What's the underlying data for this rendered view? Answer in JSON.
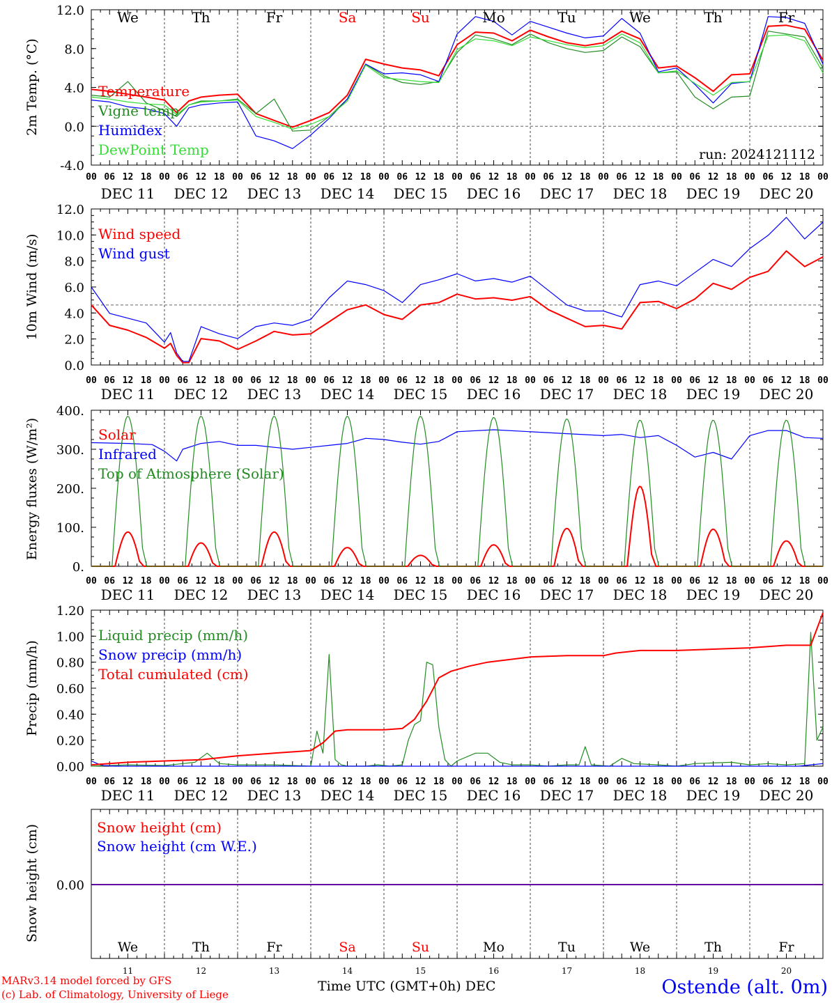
{
  "days": [
    "DEC 11",
    "DEC 12",
    "DEC 13",
    "DEC 14",
    "DEC 15",
    "DEC 16",
    "DEC 17",
    "DEC 18",
    "DEC 19",
    "DEC 20"
  ],
  "weekdays": [
    "We",
    "Th",
    "Fr",
    "Sa",
    "Su",
    "Mo",
    "Tu",
    "We",
    "Th",
    "Fr"
  ],
  "weekday_colors": [
    "#000000",
    "#000000",
    "#000000",
    "#ff0000",
    "#ff0000",
    "#000000",
    "#000000",
    "#000000",
    "#000000",
    "#000000"
  ],
  "day_numbers": [
    "11",
    "12",
    "13",
    "14",
    "15",
    "16",
    "17",
    "18",
    "19",
    "20"
  ],
  "hour_ticks": [
    "00",
    "06",
    "12",
    "18"
  ],
  "hour_end": "00",
  "run_label": "run: 2024121112",
  "footer": {
    "credit_line1": "MARv3.14 model forced by GFS",
    "credit_line2": "(c) Lab. of Climatology, University of Liege",
    "xlabel": "Time UTC (GMT+0h) DEC",
    "station": "Ostende (alt. 0m)"
  },
  "colors": {
    "red": "#ff0000",
    "green": "#228b22",
    "blue": "#0000ff",
    "lightgreen": "#33dd33"
  },
  "chart_data": [
    {
      "type": "line",
      "ylabel": "2m Temp. (°C)",
      "ylim": [
        -4,
        12
      ],
      "yticks": [
        "-4.0",
        "0.0",
        "4.0",
        "8.0",
        "12.0"
      ],
      "x_unit": "hours since DEC 11 00 UTC",
      "x_range": [
        0,
        240
      ],
      "dashed_y": 0,
      "series": [
        {
          "name": "Temperature",
          "color": "red",
          "x": [
            0,
            6,
            12,
            18,
            24,
            28,
            32,
            36,
            42,
            48,
            54,
            60,
            66,
            72,
            78,
            84,
            90,
            96,
            102,
            108,
            114,
            120,
            126,
            132,
            138,
            144,
            150,
            156,
            162,
            168,
            174,
            180,
            186,
            192,
            198,
            204,
            210,
            216,
            222,
            228,
            234,
            240
          ],
          "y": [
            3.8,
            3.6,
            3.3,
            3.0,
            2.7,
            1.4,
            2.6,
            3.0,
            3.2,
            3.3,
            1.3,
            0.6,
            -0.1,
            0.6,
            1.4,
            3.2,
            6.9,
            6.4,
            6.0,
            5.8,
            5.2,
            8.4,
            9.7,
            9.6,
            8.8,
            9.9,
            9.2,
            8.6,
            8.3,
            8.6,
            9.8,
            9.0,
            6.0,
            6.2,
            5.0,
            3.6,
            5.3,
            5.4,
            10.3,
            10.4,
            10.0,
            6.8
          ]
        },
        {
          "name": "Vigne temp",
          "color": "green",
          "x": [
            0,
            6,
            12,
            18,
            24,
            28,
            32,
            36,
            42,
            48,
            54,
            60,
            66,
            72,
            78,
            84,
            90,
            96,
            102,
            108,
            114,
            120,
            126,
            132,
            138,
            144,
            150,
            156,
            162,
            168,
            174,
            180,
            186,
            192,
            198,
            204,
            210,
            216,
            222,
            228,
            234,
            240
          ],
          "y": [
            3.2,
            3.0,
            4.6,
            2.4,
            1.6,
            1.0,
            2.2,
            2.6,
            2.6,
            2.8,
            1.3,
            2.8,
            -0.5,
            -0.4,
            1.0,
            2.8,
            6.4,
            5.2,
            4.5,
            4.3,
            4.6,
            7.6,
            9.4,
            9.0,
            8.4,
            9.5,
            8.6,
            8.0,
            7.6,
            7.8,
            9.2,
            8.2,
            5.5,
            5.6,
            3.0,
            1.8,
            3.0,
            3.1,
            9.8,
            9.5,
            9.2,
            6.0
          ]
        },
        {
          "name": "Humidex",
          "color": "blue",
          "x": [
            0,
            6,
            12,
            18,
            24,
            28,
            32,
            36,
            42,
            48,
            54,
            60,
            66,
            72,
            78,
            84,
            90,
            96,
            102,
            108,
            114,
            120,
            126,
            132,
            138,
            144,
            150,
            156,
            162,
            168,
            174,
            180,
            186,
            192,
            198,
            204,
            210,
            216,
            222,
            228,
            234,
            240
          ],
          "y": [
            2.7,
            2.5,
            2.0,
            1.8,
            1.3,
            0.0,
            1.9,
            2.2,
            2.4,
            2.5,
            -1.0,
            -1.5,
            -2.3,
            -0.9,
            0.8,
            2.8,
            6.4,
            5.4,
            5.5,
            5.3,
            4.6,
            9.5,
            11.3,
            10.8,
            9.4,
            10.8,
            10.2,
            9.6,
            9.1,
            9.3,
            11.1,
            9.6,
            5.6,
            6.0,
            4.3,
            2.4,
            4.4,
            4.6,
            11.3,
            11.2,
            10.6,
            6.4
          ]
        },
        {
          "name": "DewPoint Temp",
          "color": "lightgreen",
          "x": [
            0,
            6,
            12,
            18,
            24,
            28,
            32,
            36,
            42,
            48,
            54,
            60,
            66,
            72,
            78,
            84,
            90,
            96,
            102,
            108,
            114,
            120,
            126,
            132,
            138,
            144,
            150,
            156,
            162,
            168,
            174,
            180,
            186,
            192,
            198,
            204,
            210,
            216,
            222,
            228,
            234,
            240
          ],
          "y": [
            3.0,
            2.8,
            2.5,
            2.3,
            2.2,
            1.2,
            2.2,
            2.5,
            2.6,
            2.7,
            1.0,
            0.4,
            -0.3,
            0.2,
            1.0,
            2.6,
            6.3,
            5.0,
            4.8,
            4.6,
            4.5,
            7.9,
            9.0,
            8.8,
            8.3,
            9.2,
            8.8,
            8.4,
            8.1,
            8.3,
            9.5,
            8.6,
            5.5,
            5.7,
            4.4,
            3.2,
            4.5,
            4.6,
            9.3,
            9.4,
            8.8,
            5.5
          ]
        }
      ]
    },
    {
      "type": "line",
      "ylabel": "10m Wind (m/s)",
      "ylim": [
        0,
        13
      ],
      "yticks": [
        "0.0",
        "2.0",
        "4.0",
        "6.0",
        "8.0",
        "10.0",
        "12.0"
      ],
      "x_unit": "hours since DEC 11 00 UTC",
      "x_range": [
        0,
        240
      ],
      "dashed_y": 5,
      "series": [
        {
          "name": "Wind speed",
          "color": "red",
          "x": [
            0,
            6,
            12,
            18,
            24,
            26,
            28,
            30,
            32,
            36,
            42,
            48,
            54,
            60,
            66,
            72,
            78,
            84,
            90,
            96,
            102,
            108,
            114,
            120,
            126,
            132,
            138,
            144,
            150,
            156,
            162,
            168,
            174,
            180,
            186,
            192,
            198,
            204,
            210,
            216,
            222,
            228,
            234,
            240
          ],
          "y": [
            5.0,
            3.3,
            2.9,
            2.3,
            1.4,
            1.8,
            0.8,
            0.2,
            0.2,
            2.2,
            2.0,
            1.3,
            2.0,
            2.8,
            2.5,
            2.6,
            3.6,
            4.6,
            5.0,
            4.2,
            3.8,
            5.0,
            5.2,
            5.9,
            5.5,
            5.6,
            5.4,
            5.7,
            4.6,
            3.9,
            3.2,
            3.3,
            3.0,
            5.2,
            5.3,
            4.7,
            5.5,
            6.8,
            6.3,
            7.3,
            7.8,
            9.5,
            8.2,
            9.0
          ]
        },
        {
          "name": "Wind gust",
          "color": "blue",
          "x": [
            0,
            6,
            12,
            18,
            24,
            26,
            28,
            30,
            32,
            36,
            42,
            48,
            54,
            60,
            66,
            72,
            78,
            84,
            90,
            96,
            102,
            108,
            114,
            120,
            126,
            132,
            138,
            144,
            150,
            156,
            162,
            168,
            174,
            180,
            186,
            192,
            198,
            204,
            210,
            216,
            222,
            228,
            234,
            240
          ],
          "y": [
            6.5,
            4.3,
            3.9,
            3.5,
            1.9,
            2.7,
            1.0,
            0.3,
            0.3,
            3.2,
            2.6,
            2.2,
            3.2,
            3.5,
            3.3,
            3.8,
            5.6,
            7.0,
            6.7,
            6.2,
            5.2,
            6.7,
            7.1,
            7.6,
            7.0,
            7.2,
            6.9,
            7.4,
            6.2,
            5.0,
            4.5,
            4.5,
            4.0,
            6.7,
            7.0,
            6.6,
            7.7,
            8.8,
            8.2,
            9.7,
            10.8,
            12.3,
            10.5,
            11.9
          ]
        }
      ]
    },
    {
      "type": "line",
      "ylabel": "Energy fluxes (W/m²)",
      "ylim": [
        0,
        400
      ],
      "yticks": [
        "0.",
        "100.",
        "200.",
        "300.",
        "400."
      ],
      "x_unit": "hours since DEC 11 00 UTC",
      "x_range": [
        0,
        240
      ],
      "series": [
        {
          "name": "Solar",
          "color": "red",
          "peaks": [
            88,
            60,
            88,
            48,
            28,
            55,
            97,
            205,
            95,
            65
          ]
        },
        {
          "name": "Infrared",
          "color": "blue",
          "x": [
            0,
            12,
            20,
            24,
            28,
            30,
            36,
            42,
            48,
            54,
            60,
            66,
            72,
            78,
            84,
            90,
            96,
            102,
            108,
            114,
            120,
            132,
            144,
            156,
            168,
            174,
            180,
            186,
            192,
            198,
            204,
            210,
            216,
            222,
            228,
            234,
            240
          ],
          "y": [
            317,
            315,
            312,
            295,
            270,
            300,
            315,
            320,
            310,
            310,
            305,
            300,
            305,
            310,
            315,
            328,
            325,
            318,
            313,
            320,
            345,
            350,
            345,
            340,
            335,
            338,
            330,
            335,
            310,
            280,
            292,
            275,
            335,
            348,
            348,
            330,
            328
          ]
        },
        {
          "name": "Top of Atmosphere (Solar)",
          "color": "green",
          "peaks": [
            385,
            385,
            385,
            385,
            385,
            382,
            378,
            375,
            375,
            375
          ]
        }
      ]
    },
    {
      "type": "line",
      "ylabel": "Precip (mm/h)",
      "ylim": [
        0,
        1.2
      ],
      "yticks": [
        "0.00",
        "0.20",
        "0.40",
        "0.60",
        "0.80",
        "1.00",
        "1.20"
      ],
      "x_unit": "hours since DEC 11 00 UTC",
      "x_range": [
        0,
        240
      ],
      "series": [
        {
          "name": "Liquid precip (mm/h)",
          "color": "green",
          "x": [
            0,
            6,
            12,
            24,
            34,
            38,
            42,
            48,
            60,
            72,
            74,
            76,
            78,
            80,
            82,
            84,
            86,
            88,
            90,
            94,
            98,
            102,
            104,
            106,
            108,
            110,
            112,
            114,
            116,
            118,
            120,
            126,
            130,
            134,
            138,
            144,
            150,
            156,
            160,
            162,
            164,
            170,
            174,
            178,
            186,
            192,
            198,
            210,
            216,
            222,
            228,
            234,
            236,
            238,
            240
          ],
          "y": [
            0,
            0.005,
            0.01,
            0.005,
            0.03,
            0.1,
            0.02,
            0.01,
            0.01,
            0,
            0.27,
            0.1,
            0.86,
            0.05,
            0.01,
            0,
            0,
            0,
            0,
            0.01,
            0,
            0.01,
            0.2,
            0.32,
            0.35,
            0.8,
            0.78,
            0.3,
            0.05,
            0,
            0.04,
            0.1,
            0.1,
            0.03,
            0.01,
            0.01,
            0,
            0.01,
            0.01,
            0.15,
            0.01,
            0,
            0.06,
            0.02,
            0.01,
            0,
            0.02,
            0.03,
            0.01,
            0.02,
            0.01,
            0.02,
            1.03,
            0.2,
            0.3
          ]
        },
        {
          "name": "Snow precip (mm/h)",
          "color": "blue",
          "x": [
            0,
            2,
            4,
            8,
            12,
            24,
            48,
            72,
            96,
            120,
            144,
            168,
            192,
            216,
            232,
            236,
            240
          ],
          "y": [
            0.04,
            0.02,
            0.005,
            0,
            0,
            0,
            0,
            0,
            0,
            0,
            0,
            0,
            0,
            0,
            0,
            0.01,
            0.02
          ]
        },
        {
          "name": "Total cumulated (cm)",
          "color": "red",
          "x": [
            0,
            12,
            24,
            36,
            48,
            60,
            72,
            76,
            80,
            84,
            96,
            102,
            106,
            110,
            114,
            118,
            124,
            130,
            144,
            156,
            168,
            172,
            180,
            192,
            204,
            216,
            228,
            236,
            240
          ],
          "y": [
            0.01,
            0.03,
            0.04,
            0.05,
            0.08,
            0.1,
            0.12,
            0.18,
            0.27,
            0.28,
            0.28,
            0.29,
            0.36,
            0.5,
            0.68,
            0.73,
            0.77,
            0.8,
            0.84,
            0.85,
            0.85,
            0.87,
            0.89,
            0.89,
            0.9,
            0.91,
            0.93,
            0.93,
            1.18
          ]
        }
      ]
    },
    {
      "type": "line",
      "ylabel": "Snow height (cm)",
      "yticks": [
        "0.00"
      ],
      "x_unit": "hours since DEC 11 00 UTC",
      "x_range": [
        0,
        240
      ],
      "series": [
        {
          "name": "Snow height (cm)",
          "color": "red",
          "x": [
            0,
            240
          ],
          "y": [
            0,
            0
          ]
        },
        {
          "name": "Snow height (cm W.E.)",
          "color": "blue",
          "x": [
            0,
            240
          ],
          "y": [
            0,
            0
          ]
        }
      ]
    }
  ]
}
